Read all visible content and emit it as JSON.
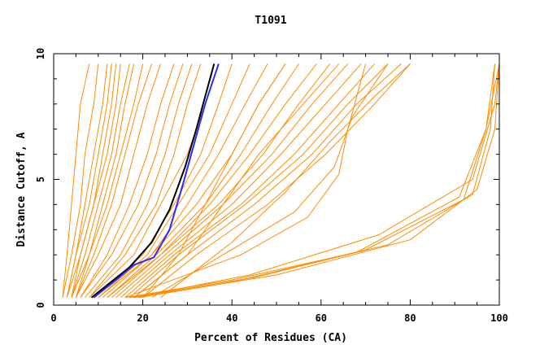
{
  "chart_data": {
    "type": "line",
    "title": "T1091",
    "xlabel": "Percent of Residues (CA)",
    "ylabel": "Distance Cutoff, A",
    "xlim": [
      0,
      100
    ],
    "ylim": [
      0,
      10
    ],
    "x_ticks": [
      "0",
      "20",
      "40",
      "60",
      "80",
      "100"
    ],
    "y_ticks": [
      "0",
      "5",
      "10"
    ],
    "grid": false,
    "legend": "none",
    "colors": {
      "orange": "#ff8c00",
      "black": "#000000",
      "blue": "#2b2bff",
      "axis": "#000000"
    },
    "series": [
      {
        "color": "orange",
        "x": [
          2,
          3,
          4,
          5,
          6,
          8
        ],
        "y": [
          0.3,
          2,
          4,
          6,
          8,
          9.6
        ]
      },
      {
        "color": "orange",
        "x": [
          2,
          4,
          6,
          7,
          9,
          10
        ],
        "y": [
          0.3,
          2,
          4,
          6,
          8,
          9.6
        ]
      },
      {
        "color": "orange",
        "x": [
          3,
          5,
          7,
          9,
          11,
          12
        ],
        "y": [
          0.3,
          2,
          4,
          6,
          8,
          9.6
        ]
      },
      {
        "color": "orange",
        "x": [
          3,
          5,
          8,
          10,
          12,
          13
        ],
        "y": [
          0.3,
          2,
          4,
          6,
          8,
          9.6
        ]
      },
      {
        "color": "orange",
        "x": [
          3,
          6,
          9,
          11,
          13,
          14
        ],
        "y": [
          0.3,
          2,
          4,
          6,
          8,
          9.6
        ]
      },
      {
        "color": "orange",
        "x": [
          4,
          6,
          9,
          12,
          14,
          15
        ],
        "y": [
          0.3,
          2,
          4,
          6,
          8,
          9.6
        ]
      },
      {
        "color": "orange",
        "x": [
          4,
          7,
          10,
          13,
          15,
          17
        ],
        "y": [
          0.3,
          2,
          4,
          6,
          8,
          9.6
        ]
      },
      {
        "color": "orange",
        "x": [
          4,
          8,
          11,
          14,
          16,
          18
        ],
        "y": [
          0.3,
          2,
          4,
          6,
          8,
          9.6
        ]
      },
      {
        "color": "orange",
        "x": [
          5,
          8,
          12,
          15,
          18,
          20
        ],
        "y": [
          0.3,
          2,
          4,
          6,
          8,
          9.6
        ]
      },
      {
        "color": "orange",
        "x": [
          5,
          9,
          13,
          16,
          19,
          22
        ],
        "y": [
          0.3,
          2,
          4,
          6,
          8,
          9.6
        ]
      },
      {
        "color": "orange",
        "x": [
          5,
          10,
          15,
          18,
          21,
          24
        ],
        "y": [
          0.3,
          2,
          4,
          6,
          8,
          9.6
        ]
      },
      {
        "color": "orange",
        "x": [
          6,
          12,
          17,
          21,
          24,
          27
        ],
        "y": [
          0.3,
          2,
          4,
          6,
          8,
          9.6
        ]
      },
      {
        "color": "orange",
        "x": [
          6,
          13,
          19,
          23,
          26,
          29
        ],
        "y": [
          0.3,
          2,
          4,
          6,
          8,
          9.6
        ]
      },
      {
        "color": "orange",
        "x": [
          7,
          15,
          21,
          25,
          28,
          31
        ],
        "y": [
          0.3,
          2,
          4,
          6,
          8,
          9.6
        ]
      },
      {
        "color": "orange",
        "x": [
          8,
          16,
          23,
          27,
          30,
          33
        ],
        "y": [
          0.3,
          2,
          4,
          6,
          8,
          9.6
        ]
      },
      {
        "color": "orange",
        "x": [
          8,
          18,
          24,
          30,
          34,
          37
        ],
        "y": [
          0.3,
          2,
          4,
          6,
          8,
          9.6
        ]
      },
      {
        "color": "orange",
        "x": [
          9,
          20,
          27,
          33,
          37,
          40
        ],
        "y": [
          0.3,
          2,
          4,
          6,
          8,
          9.6
        ]
      },
      {
        "color": "orange",
        "x": [
          10,
          21,
          28,
          35,
          40,
          44
        ],
        "y": [
          0.3,
          2,
          4,
          6,
          8,
          9.6
        ]
      },
      {
        "color": "orange",
        "x": [
          10,
          22,
          30,
          37,
          43,
          48
        ],
        "y": [
          0.3,
          2,
          4,
          6,
          8,
          9.6
        ]
      },
      {
        "color": "orange",
        "x": [
          11,
          22,
          32,
          40,
          46,
          52
        ],
        "y": [
          0.3,
          2,
          4,
          6,
          8,
          9.6
        ]
      },
      {
        "color": "orange",
        "x": [
          12,
          23,
          34,
          42,
          49,
          55
        ],
        "y": [
          0.3,
          2,
          4,
          6,
          8,
          9.6
        ]
      },
      {
        "color": "orange",
        "x": [
          12,
          24,
          35,
          44,
          52,
          59
        ],
        "y": [
          0.3,
          2,
          4,
          6,
          8,
          9.6
        ]
      },
      {
        "color": "orange",
        "x": [
          13,
          24,
          37,
          47,
          55,
          62
        ],
        "y": [
          0.3,
          2,
          4,
          6,
          8,
          9.6
        ]
      },
      {
        "color": "orange",
        "x": [
          14,
          25,
          38,
          49,
          58,
          66
        ],
        "y": [
          0.3,
          2,
          4,
          6,
          8,
          9.6
        ]
      },
      {
        "color": "orange",
        "x": [
          15,
          26,
          40,
          51,
          61,
          69
        ],
        "y": [
          0.3,
          2,
          4,
          6,
          8,
          9.6
        ]
      },
      {
        "color": "orange",
        "x": [
          16,
          27,
          42,
          54,
          64,
          72
        ],
        "y": [
          0.3,
          2,
          4,
          6,
          8,
          9.6
        ]
      },
      {
        "color": "orange",
        "x": [
          17,
          28,
          43,
          56,
          66,
          75
        ],
        "y": [
          0.3,
          2,
          4,
          6,
          8,
          9.6
        ]
      },
      {
        "color": "orange",
        "x": [
          18,
          30,
          45,
          58,
          68,
          78
        ],
        "y": [
          0.3,
          2,
          4,
          6,
          8,
          9.6
        ]
      },
      {
        "color": "orange",
        "x": [
          20,
          32,
          48,
          61,
          72,
          80
        ],
        "y": [
          0.3,
          2,
          4,
          6,
          8,
          9.6
        ]
      },
      {
        "color": "orange",
        "x": [
          22,
          38,
          54,
          63,
          67,
          75
        ],
        "y": [
          0.3,
          2,
          3.7,
          5.5,
          7.5,
          9.6
        ]
      },
      {
        "color": "orange",
        "x": [
          16,
          42,
          57,
          64,
          66,
          70
        ],
        "y": [
          0.3,
          2,
          3.5,
          5.2,
          7,
          9.6
        ]
      },
      {
        "color": "orange",
        "x": [
          24,
          40,
          52,
          62,
          72,
          80
        ],
        "y": [
          0.3,
          2.5,
          4.5,
          6.5,
          8.3,
          9.6
        ]
      },
      {
        "color": "orange",
        "x": [
          18,
          30,
          38,
          46,
          56,
          64
        ],
        "y": [
          0.3,
          2,
          4,
          6,
          8,
          9.6
        ]
      },
      {
        "color": "orange",
        "x": [
          20,
          28,
          34,
          40,
          46,
          52
        ],
        "y": [
          0.3,
          2,
          4,
          6,
          8,
          9.6
        ]
      },
      {
        "color": "orange",
        "x": [
          19,
          50,
          80,
          95,
          99,
          100
        ],
        "y": [
          0.3,
          1.2,
          2.6,
          4.6,
          7,
          9.6
        ]
      },
      {
        "color": "orange",
        "x": [
          18,
          45,
          75,
          94,
          98,
          99
        ],
        "y": [
          0.3,
          1.1,
          2.4,
          4.4,
          7,
          9.6
        ]
      },
      {
        "color": "orange",
        "x": [
          17,
          42,
          70,
          92,
          97,
          99
        ],
        "y": [
          0.3,
          1.0,
          2.2,
          4.2,
          7,
          9.6
        ]
      },
      {
        "color": "orange",
        "x": [
          16,
          40,
          68,
          91,
          97,
          100
        ],
        "y": [
          0.3,
          1.0,
          2.1,
          4.3,
          7,
          9.6
        ]
      },
      {
        "color": "orange",
        "x": [
          18,
          44,
          73,
          94,
          99,
          100
        ],
        "y": [
          0.3,
          1.2,
          2.8,
          5,
          8,
          9.6
        ]
      },
      {
        "color": "black",
        "x": [
          8.5,
          12,
          17,
          22,
          26,
          29.5,
          32,
          34,
          36
        ],
        "y": [
          0.3,
          0.8,
          1.5,
          2.5,
          3.8,
          5.5,
          7,
          8.3,
          9.6
        ]
      },
      {
        "color": "blue",
        "x": [
          9,
          14,
          18,
          22.5,
          26,
          29,
          31.5,
          34,
          37
        ],
        "y": [
          0.3,
          1,
          1.6,
          1.9,
          3,
          4.8,
          6.4,
          8,
          9.6
        ]
      }
    ]
  }
}
